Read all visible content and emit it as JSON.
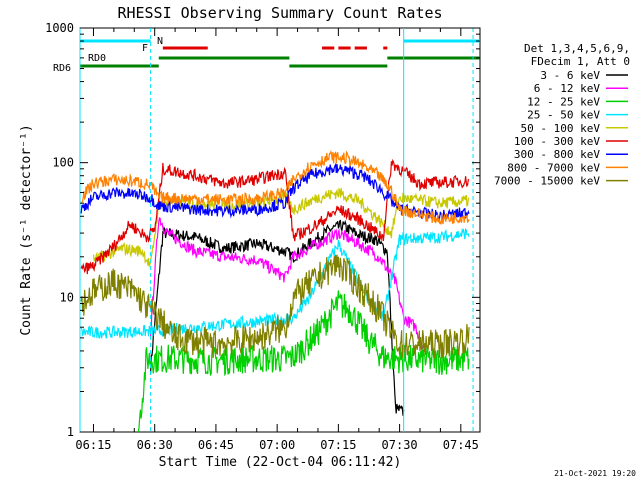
{
  "chart_data": {
    "type": "line",
    "title": "RHESSI Observing Summary Count Rates",
    "xlabel": "Start Time (22-Oct-04 06:11:42)",
    "ylabel": "Count Rate (s⁻¹ detector⁻¹)",
    "y_scale": "log",
    "ylim": [
      1,
      1000
    ],
    "xlim": [
      "06:11:42",
      "07:49:42"
    ],
    "x_ticks": [
      "06:15",
      "06:30",
      "06:45",
      "07:00",
      "07:15",
      "07:30",
      "07:45"
    ],
    "y_ticks": [
      "1",
      "10",
      "100",
      "1000"
    ],
    "legend_header": [
      "Det 1,3,4,5,6,9,",
      "FDecim 1, Att 0"
    ],
    "flags": {
      "labels": {
        "N": "N",
        "F": "F",
        "RD0": "RD0",
        "RD6": "RD6"
      },
      "night_color": "#00e5ff",
      "flare_color": "#e00000",
      "saa_color": "#008000"
    },
    "series": [
      {
        "name": "3 - 6 keV",
        "color": "#000000",
        "points": [
          [
            "06:29",
            3
          ],
          [
            "06:32",
            30
          ],
          [
            "06:40",
            28
          ],
          [
            "06:47",
            23
          ],
          [
            "06:55",
            25
          ],
          [
            "07:02",
            22
          ],
          [
            "07:04",
            20
          ],
          [
            "07:08",
            25
          ],
          [
            "07:13",
            32
          ],
          [
            "07:16",
            34
          ],
          [
            "07:20",
            29
          ],
          [
            "07:24",
            27
          ],
          [
            "07:27",
            22
          ],
          [
            "07:29",
            1.5
          ],
          [
            "07:31",
            1.4
          ]
        ]
      },
      {
        "name": "6 - 12 keV",
        "color": "#ff00ff",
        "points": [
          [
            "06:29",
            5.5
          ],
          [
            "06:31",
            40
          ],
          [
            "06:33",
            30
          ],
          [
            "06:40",
            22
          ],
          [
            "06:47",
            20
          ],
          [
            "06:55",
            19
          ],
          [
            "07:02",
            14
          ],
          [
            "07:04",
            20
          ],
          [
            "07:10",
            25
          ],
          [
            "07:15",
            30
          ],
          [
            "07:20",
            25
          ],
          [
            "07:25",
            20
          ],
          [
            "07:29",
            13
          ],
          [
            "07:31",
            7
          ],
          [
            "07:34",
            6
          ],
          [
            "07:36",
            4
          ]
        ]
      },
      {
        "name": "12 - 25 keV",
        "color": "#00d000",
        "points": [
          [
            "06:26",
            1
          ],
          [
            "06:28",
            3.5
          ],
          [
            "06:35",
            3.5
          ],
          [
            "06:45",
            3.4
          ],
          [
            "06:55",
            3.5
          ],
          [
            "07:02",
            3.5
          ],
          [
            "07:04",
            3.6
          ],
          [
            "07:10",
            5.5
          ],
          [
            "07:15",
            9
          ],
          [
            "07:18",
            8
          ],
          [
            "07:22",
            5
          ],
          [
            "07:26",
            3.6
          ],
          [
            "07:30",
            3.5
          ],
          [
            "07:40",
            3.4
          ],
          [
            "07:47",
            3.5
          ]
        ]
      },
      {
        "name": "25 - 50 keV",
        "color": "#00e5ff",
        "points": [
          [
            "06:12",
            5.5
          ],
          [
            "06:20",
            5.5
          ],
          [
            "06:28",
            5.6
          ],
          [
            "06:29",
            5.6
          ],
          [
            "07:04",
            7
          ],
          [
            "07:08",
            10
          ],
          [
            "07:12",
            17
          ],
          [
            "07:15",
            25
          ],
          [
            "07:18",
            17
          ],
          [
            "07:22",
            10
          ],
          [
            "07:26",
            7
          ],
          [
            "07:30",
            27
          ],
          [
            "07:40",
            28
          ],
          [
            "07:47",
            30
          ]
        ]
      },
      {
        "name": "50 - 100 keV",
        "color": "#c8c800",
        "points": [
          [
            "06:15",
            19
          ],
          [
            "06:22",
            23
          ],
          [
            "06:27",
            22
          ],
          [
            "06:29",
            17
          ],
          [
            "06:31",
            50
          ],
          [
            "06:40",
            50
          ],
          [
            "06:47",
            48
          ],
          [
            "06:55",
            50
          ],
          [
            "07:02",
            55
          ],
          [
            "07:04",
            45
          ],
          [
            "07:10",
            55
          ],
          [
            "07:15",
            60
          ],
          [
            "07:20",
            52
          ],
          [
            "07:24",
            40
          ],
          [
            "07:28",
            30
          ],
          [
            "07:30",
            55
          ],
          [
            "07:40",
            50
          ],
          [
            "07:47",
            52
          ]
        ]
      },
      {
        "name": "100 - 300 keV",
        "color": "#e00000",
        "points": [
          [
            "06:12",
            16
          ],
          [
            "06:15",
            17
          ],
          [
            "06:20",
            24
          ],
          [
            "06:24",
            35
          ],
          [
            "06:28",
            28
          ],
          [
            "06:30",
            32
          ],
          [
            "06:32",
            90
          ],
          [
            "06:40",
            80
          ],
          [
            "06:47",
            70
          ],
          [
            "06:55",
            75
          ],
          [
            "07:02",
            85
          ],
          [
            "07:04",
            28
          ],
          [
            "07:10",
            35
          ],
          [
            "07:15",
            45
          ],
          [
            "07:20",
            38
          ],
          [
            "07:26",
            28
          ],
          [
            "07:28",
            100
          ],
          [
            "07:35",
            70
          ],
          [
            "07:47",
            73
          ]
        ]
      },
      {
        "name": "300 - 800 keV",
        "color": "#0000ff",
        "points": [
          [
            "06:12",
            45
          ],
          [
            "06:15",
            55
          ],
          [
            "06:20",
            60
          ],
          [
            "06:26",
            58
          ],
          [
            "06:29",
            55
          ],
          [
            "06:31",
            48
          ],
          [
            "06:40",
            45
          ],
          [
            "06:47",
            44
          ],
          [
            "06:55",
            45
          ],
          [
            "07:02",
            50
          ],
          [
            "07:04",
            65
          ],
          [
            "07:08",
            80
          ],
          [
            "07:13",
            90
          ],
          [
            "07:17",
            88
          ],
          [
            "07:21",
            80
          ],
          [
            "07:25",
            65
          ],
          [
            "07:28",
            52
          ],
          [
            "07:30",
            45
          ],
          [
            "07:40",
            40
          ],
          [
            "07:47",
            43
          ]
        ]
      },
      {
        "name": "800 - 7000 keV",
        "color": "#ff8000",
        "points": [
          [
            "06:12",
            55
          ],
          [
            "06:15",
            70
          ],
          [
            "06:20",
            75
          ],
          [
            "06:26",
            72
          ],
          [
            "06:29",
            68
          ],
          [
            "06:31",
            55
          ],
          [
            "06:40",
            54
          ],
          [
            "06:47",
            53
          ],
          [
            "06:55",
            54
          ],
          [
            "07:02",
            60
          ],
          [
            "07:04",
            75
          ],
          [
            "07:08",
            95
          ],
          [
            "07:13",
            110
          ],
          [
            "07:17",
            108
          ],
          [
            "07:21",
            95
          ],
          [
            "07:25",
            80
          ],
          [
            "07:28",
            62
          ],
          [
            "07:30",
            45
          ],
          [
            "07:40",
            38
          ],
          [
            "07:47",
            40
          ]
        ]
      },
      {
        "name": "7000 - 15000 keV",
        "color": "#808000",
        "points": [
          [
            "06:12",
            9
          ],
          [
            "06:15",
            11
          ],
          [
            "06:20",
            13
          ],
          [
            "06:25",
            11
          ],
          [
            "06:29",
            8
          ],
          [
            "06:31",
            7
          ],
          [
            "06:35",
            5
          ],
          [
            "06:45",
            4.5
          ],
          [
            "06:55",
            5
          ],
          [
            "07:02",
            6
          ],
          [
            "07:04",
            10
          ],
          [
            "07:10",
            14
          ],
          [
            "07:15",
            18
          ],
          [
            "07:20",
            12
          ],
          [
            "07:25",
            8
          ],
          [
            "07:28",
            5.5
          ],
          [
            "07:30",
            4.5
          ],
          [
            "07:40",
            4.5
          ],
          [
            "07:47",
            5
          ]
        ]
      }
    ]
  },
  "footer": {
    "date_stamp": "21-Oct-2021 19:20"
  }
}
